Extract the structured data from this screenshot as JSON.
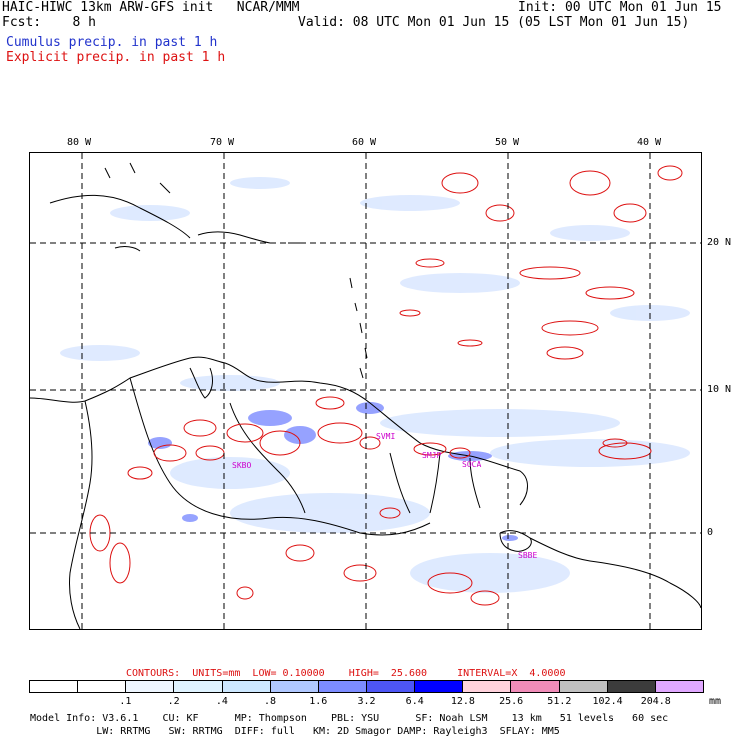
{
  "header": {
    "line1_left": "HAIC-HIWC 13km ARW-GFS init   NCAR/MMM",
    "line1_right": "Init: 00 UTC Mon 01 Jun 15",
    "line2_left": "Fcst:    8 h",
    "line2_right": "Valid: 08 UTC Mon 01 Jun 15 (05 LST Mon 01 Jun 15)",
    "cumulus_label": "Cumulus precip. in past 1 h",
    "explicit_label": "Explicit precip. in past 1 h"
  },
  "map": {
    "lon_labels": [
      "80 W",
      "70 W",
      "60 W",
      "50 W",
      "40 W"
    ],
    "lat_labels": [
      "20 N",
      "10 N",
      "0"
    ],
    "station_labels": [
      "SKBO",
      "SVMI",
      "SMJP",
      "SOCA",
      "SBBE"
    ],
    "colors": {
      "explicit": "#dd1111",
      "cumulus": "#5566ee",
      "coast": "#000000",
      "station": "#cc00cc"
    }
  },
  "contours_line": "CONTOURS:  UNITS=mm  LOW= 0.10000    HIGH=  25.600     INTERVAL=X  4.0000",
  "legend": {
    "unit": "mm",
    "tick_labels": [
      ".1",
      ".2",
      ".4",
      ".8",
      "1.6",
      "3.2",
      "6.4",
      "12.8",
      "25.6",
      "51.2",
      "102.4",
      "204.8"
    ],
    "colors": [
      "#ffffff",
      "#ffffff",
      "#eef6ff",
      "#dff3ff",
      "#cde8ff",
      "#b0c8ff",
      "#7c8cff",
      "#4d56f5",
      "#0000ff",
      "#ffd2dc",
      "#f08cb8",
      "#c0c0c0",
      "#3c3c3c",
      "#e0a8ff"
    ]
  },
  "footer": {
    "line1": "Model Info: V3.6.1    CU: KF      MP: Thompson    PBL: YSU      SF: Noah LSM    13 km   51 levels   60 sec",
    "line2": "           LW: RRTMG   SW: RRTMG  DIFF: full   KM: 2D Smagor DAMP: Rayleigh3  SFLAY: MM5"
  }
}
